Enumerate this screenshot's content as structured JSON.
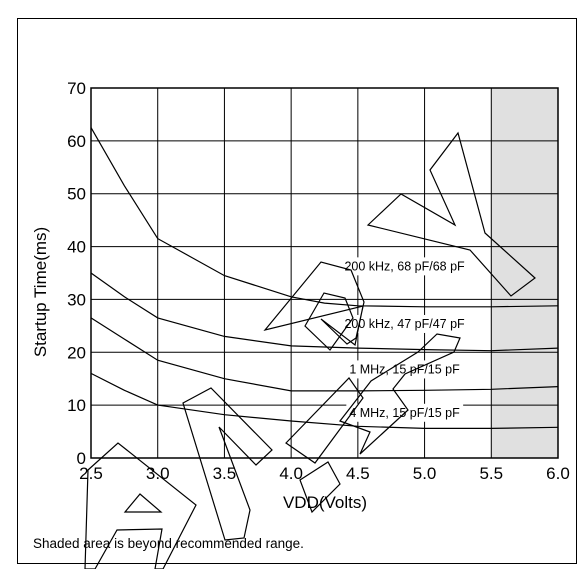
{
  "chart_data": {
    "type": "line",
    "title": "",
    "xlabel": "VDD(Volts)",
    "ylabel": "Startup Time(ms)",
    "xlim": [
      2.5,
      6.0
    ],
    "ylim": [
      0,
      70
    ],
    "x_ticks": [
      "2.5",
      "3.0",
      "3.5",
      "4.0",
      "4.5",
      "5.0",
      "5.5",
      "6.0"
    ],
    "y_ticks": [
      "0",
      "10",
      "20",
      "30",
      "40",
      "50",
      "60",
      "70"
    ],
    "grid": true,
    "shaded_region": {
      "x_from": 5.5,
      "x_to": 6.0,
      "color": "#e0e0e0"
    },
    "series": [
      {
        "name": "200 kHz, 68 pF/68 pF",
        "x": [
          2.5,
          2.75,
          3.0,
          3.25,
          3.5,
          3.75,
          4.0,
          4.25,
          4.5,
          5.0,
          5.5,
          6.0
        ],
        "y": [
          62.5,
          51.5,
          41.5,
          38.0,
          34.5,
          32.5,
          30.5,
          29.3,
          28.8,
          28.6,
          28.6,
          28.8
        ]
      },
      {
        "name": "200 kHz, 47 pF/47 pF",
        "x": [
          2.5,
          2.75,
          3.0,
          3.5,
          4.0,
          4.5,
          5.0,
          5.5,
          6.0
        ],
        "y": [
          35.0,
          30.5,
          26.5,
          23.0,
          21.2,
          20.8,
          20.5,
          20.3,
          20.8
        ]
      },
      {
        "name": "1 MHz, 15 pF/15 pF",
        "x": [
          2.5,
          2.75,
          3.0,
          3.5,
          4.0,
          4.5,
          5.0,
          5.5,
          6.0
        ],
        "y": [
          26.5,
          22.5,
          18.5,
          15.0,
          12.7,
          12.7,
          12.8,
          13.0,
          13.5
        ]
      },
      {
        "name": "4 MHz, 15 pF/15 pF",
        "x": [
          2.5,
          2.75,
          3.0,
          3.5,
          4.0,
          4.5,
          5.0,
          5.5,
          6.0
        ],
        "y": [
          16.0,
          12.8,
          10.0,
          8.2,
          7.0,
          6.0,
          5.6,
          5.6,
          5.8
        ]
      }
    ],
    "colors": {
      "line": "#000000",
      "grid": "#000000",
      "shade": "#e0e0e0",
      "watermark": "#000000"
    }
  },
  "footnote": "Shaded area is beyond recommended range."
}
